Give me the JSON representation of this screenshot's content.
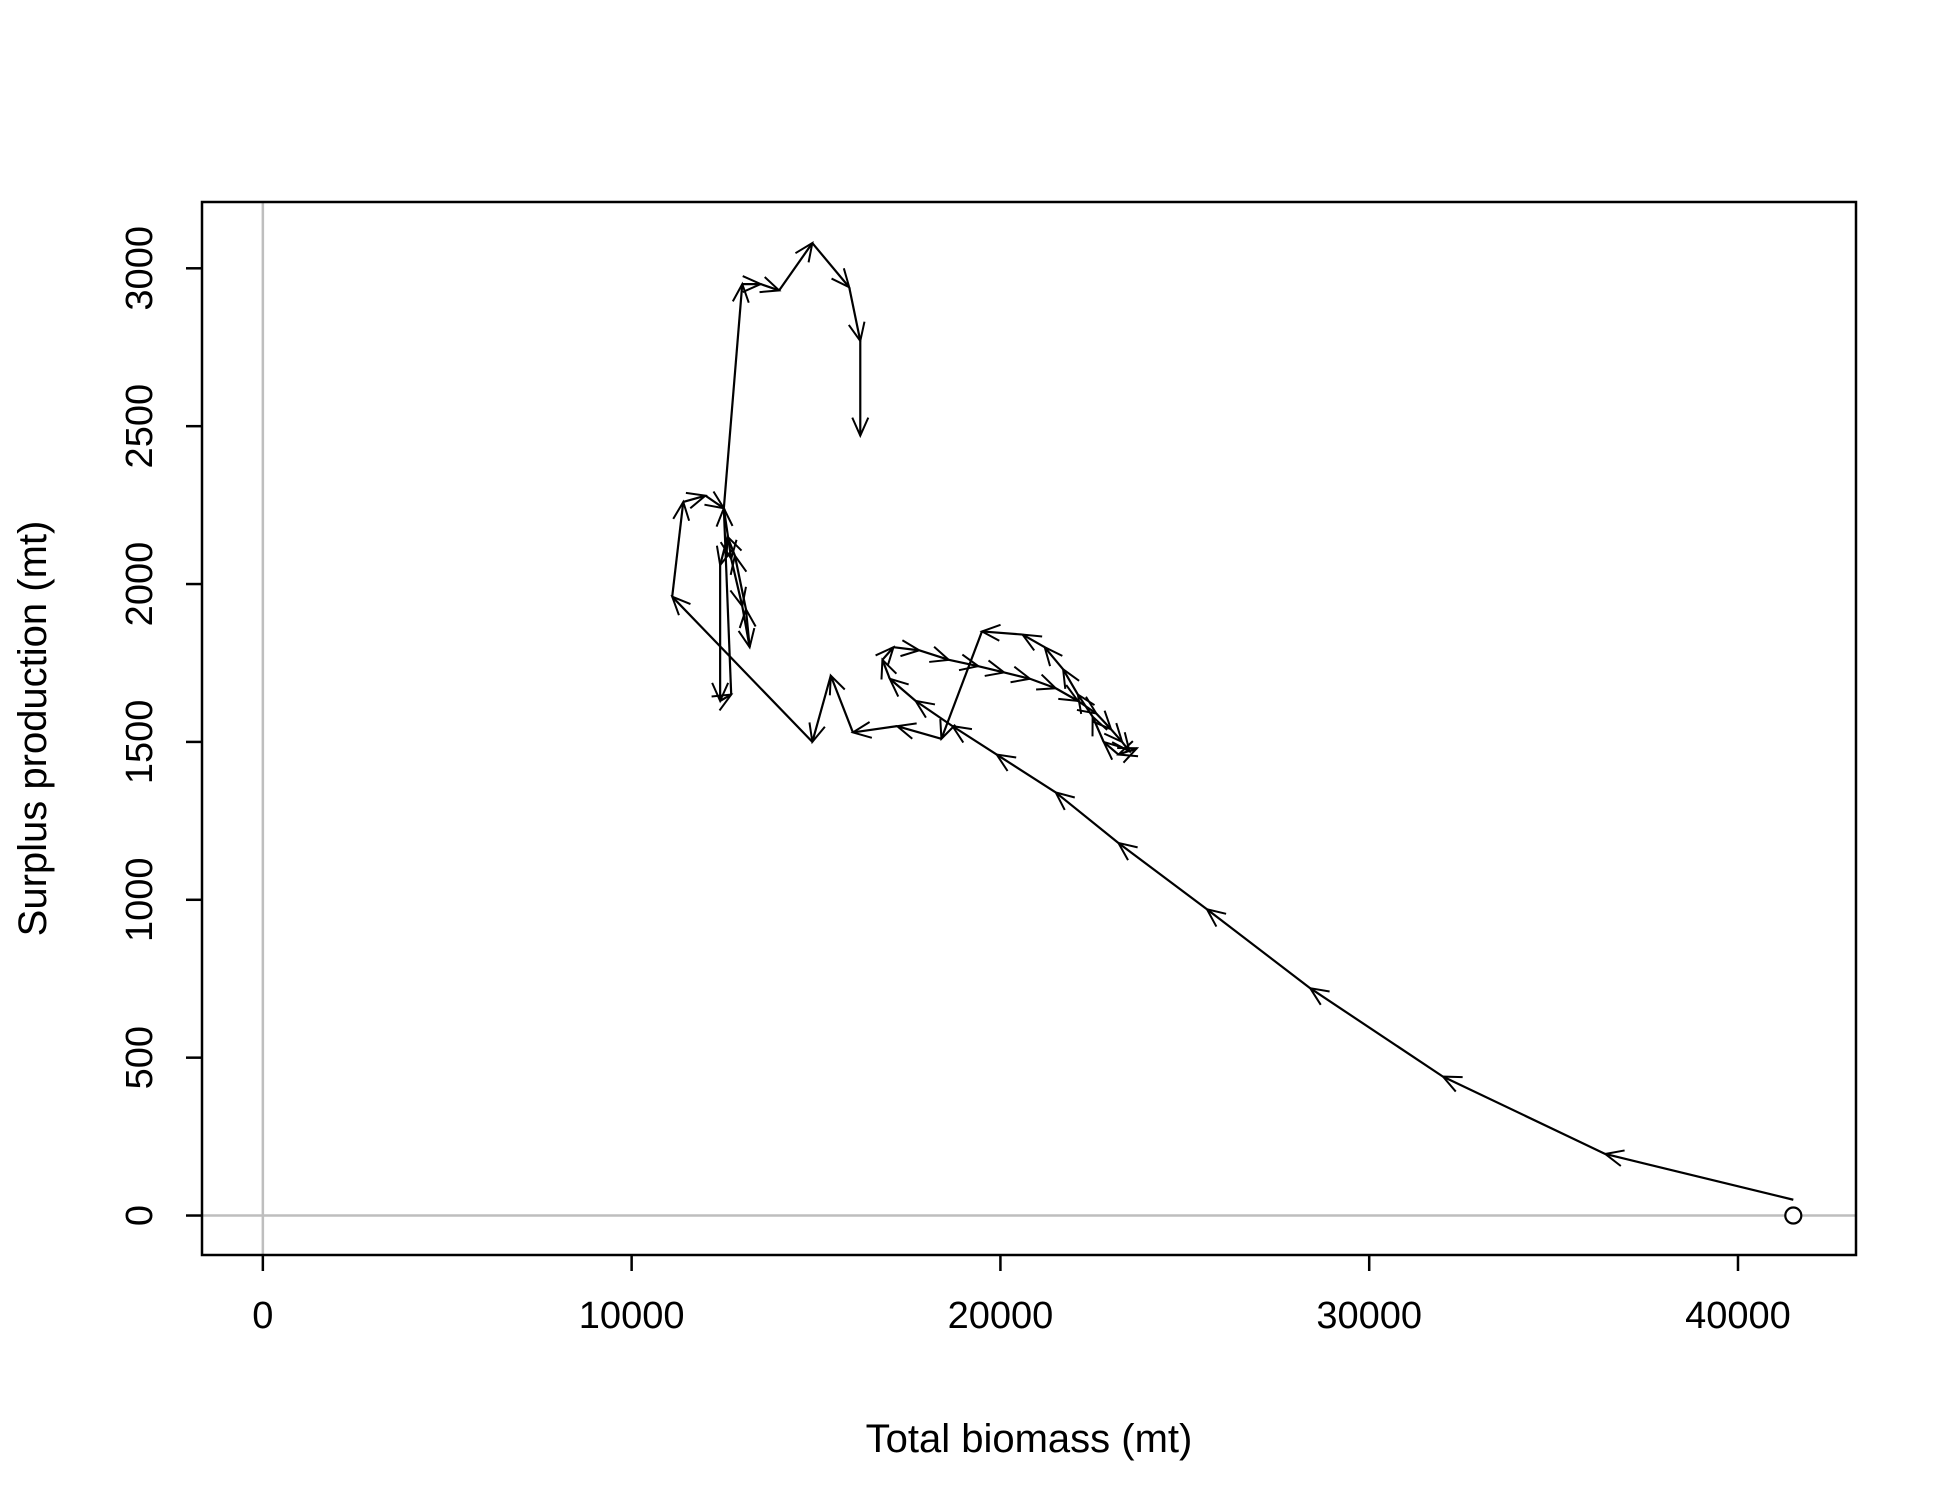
{
  "chart_data": {
    "type": "line",
    "title": "",
    "xlabel": "Total biomass (mt)",
    "ylabel": "Surplus production (mt)",
    "xlim": [
      -1650,
      43200
    ],
    "ylim": [
      -125,
      3210
    ],
    "x_ticks": [
      0,
      10000,
      20000,
      30000,
      40000
    ],
    "y_ticks": [
      0,
      500,
      1000,
      1500,
      2000,
      2500,
      3000
    ],
    "x_tick_labels": [
      "0",
      "10000",
      "20000",
      "30000",
      "40000"
    ],
    "y_tick_labels": [
      "0",
      "500",
      "1000",
      "1500",
      "2000",
      "2500",
      "3000"
    ],
    "reference_lines": {
      "x": 0,
      "y": 0,
      "color": "#bebebe"
    },
    "grid": false,
    "line_color": "#000000",
    "start_marker": "open-circle",
    "series": [
      {
        "x": [
          41500,
          36400,
          32000,
          28400,
          25600,
          23200,
          21500,
          19900,
          18700,
          17700,
          17000,
          16800,
          17100,
          17800,
          18600,
          19400,
          20100,
          20800,
          21500,
          22100,
          22600,
          23000,
          23300,
          23500,
          23700,
          23200,
          22800,
          22500,
          22100,
          21700,
          21200,
          20600,
          19500,
          18400,
          17200,
          16000,
          15400,
          14900,
          11100,
          11400,
          12000,
          12500,
          12700,
          13000,
          13200,
          13100,
          12800,
          12600,
          12400,
          12400,
          12700,
          12500,
          13000,
          13500,
          14000,
          14900,
          15900,
          16200,
          16200
        ],
        "y": [
          50,
          195,
          440,
          720,
          970,
          1180,
          1340,
          1460,
          1550,
          1630,
          1700,
          1760,
          1800,
          1790,
          1760,
          1740,
          1720,
          1700,
          1670,
          1630,
          1590,
          1540,
          1500,
          1470,
          1480,
          1460,
          1500,
          1580,
          1650,
          1730,
          1800,
          1840,
          1850,
          1510,
          1550,
          1530,
          1710,
          1500,
          1960,
          2260,
          2280,
          2240,
          2080,
          1930,
          1800,
          1920,
          2090,
          2150,
          2060,
          1630,
          1650,
          2240,
          2950,
          2950,
          2930,
          3080,
          2940,
          2770,
          2470
        ]
      }
    ]
  }
}
